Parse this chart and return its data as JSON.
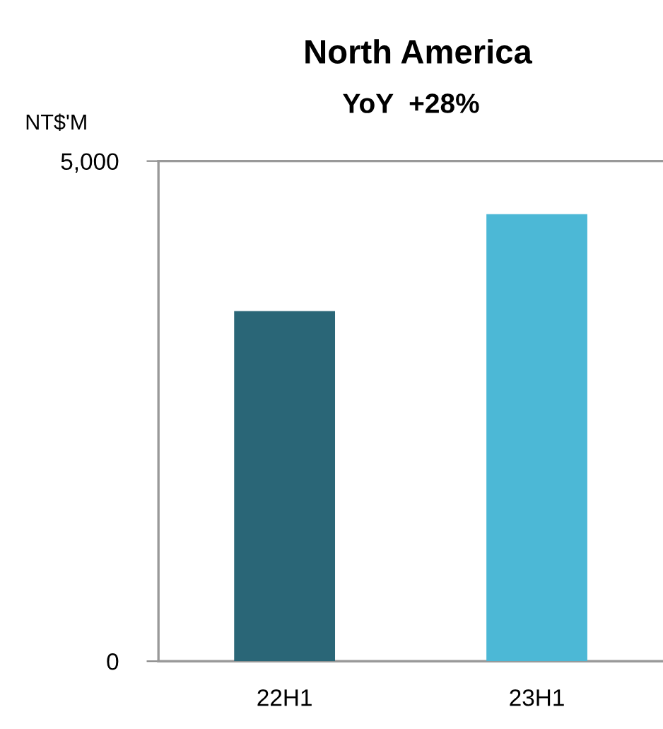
{
  "chart_data": {
    "type": "bar",
    "title": "North America",
    "subtitle": "YoY  +28%",
    "ylabel": "NT$'M",
    "categories": [
      "22H1",
      "23H1"
    ],
    "values": [
      3500,
      4470
    ],
    "colors": [
      "#2a6677",
      "#4cb8d6"
    ],
    "ylim": [
      0,
      5000
    ],
    "yticks": [
      0,
      {
        "value": 5000,
        "label": "5,000"
      }
    ]
  }
}
